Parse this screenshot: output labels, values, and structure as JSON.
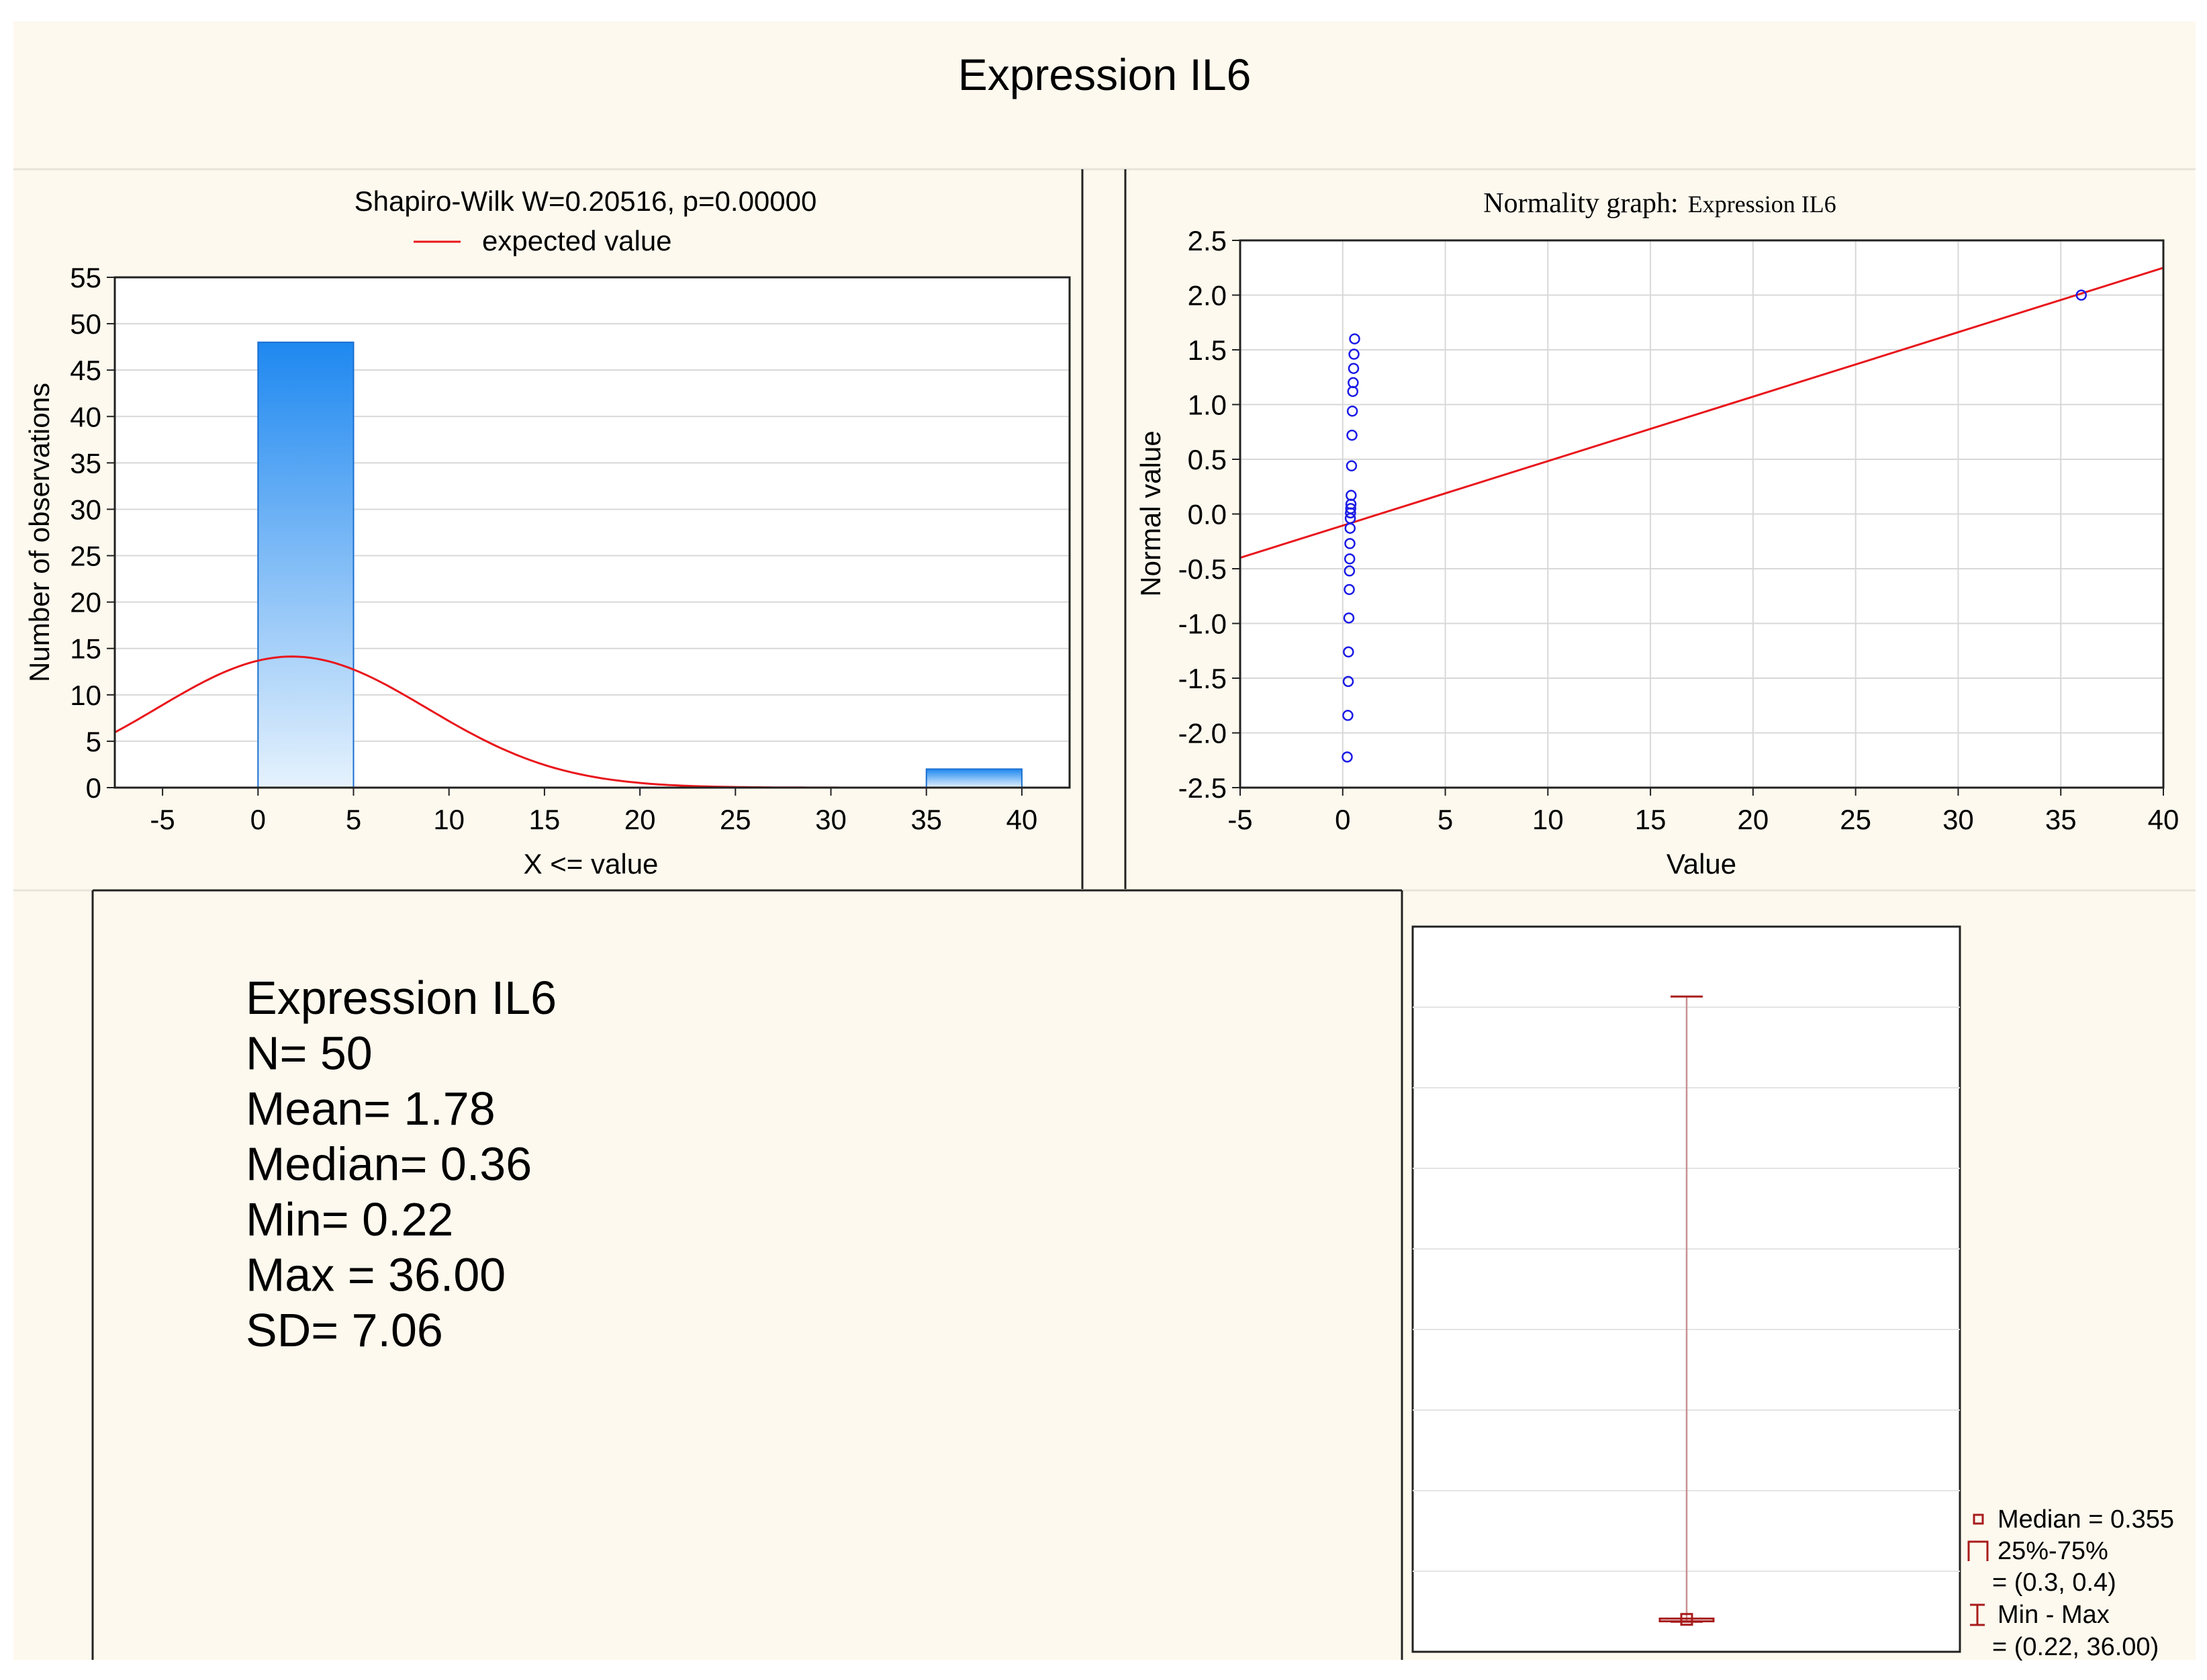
{
  "page": {
    "title": "Expression IL6",
    "background_color": "#fdf9ee"
  },
  "histogram": {
    "title": "Shapiro-Wilk W=0.20516, p=0.00000",
    "legend_label": "expected value",
    "xlabel": "X <=  value",
    "ylabel": "Number of observations",
    "x_ticks": [
      "-5",
      "0",
      "5",
      "10",
      "15",
      "20",
      "25",
      "30",
      "35",
      "40"
    ],
    "y_ticks": [
      "0",
      "5",
      "10",
      "15",
      "20",
      "25",
      "30",
      "35",
      "40",
      "45",
      "50",
      "55"
    ]
  },
  "normality": {
    "title_prefix": "Normality graph:",
    "title_var": "Expression IL6",
    "xlabel": "Value",
    "ylabel": "Normal value",
    "x_ticks": [
      "-5",
      "0",
      "5",
      "10",
      "15",
      "20",
      "25",
      "30",
      "35",
      "40"
    ],
    "y_ticks": [
      "-2.5",
      "-2.0",
      "-1.5",
      "-1.0",
      "-0.5",
      "0.0",
      "0.5",
      "1.0",
      "1.5",
      "2.0",
      "2.5"
    ]
  },
  "stats": {
    "lines": [
      "Expression IL6",
      "N= 50",
      "Mean=  1.78",
      "Median=  0.36",
      "Min=  0.22",
      "Max = 36.00",
      "SD=  7.06"
    ]
  },
  "boxplot": {
    "legend_median": "Median = 0.355",
    "legend_iqr_label": "25%-75%",
    "legend_iqr_value": "= (0.3, 0.4)",
    "legend_range_label": "Min - Max",
    "legend_range_value": "= (0.22, 36.00)"
  },
  "colors": {
    "bar_top": "#1e88f0",
    "bar_bottom": "#e6f2fd",
    "curve": "#e8161c",
    "points": "#1a1ae6",
    "grid": "#d8d8d8",
    "box": "#a81c1c"
  },
  "chart_data": [
    {
      "type": "bar",
      "title": "Shapiro-Wilk W=0.20516, p=0.00000",
      "xlabel": "X <=  value",
      "ylabel": "Number of observations",
      "bins": [
        [
          0,
          5
        ],
        [
          35,
          40
        ]
      ],
      "values": [
        48,
        2
      ],
      "xlim": [
        -7.5,
        42.5
      ],
      "ylim": [
        0,
        55
      ],
      "grid": true,
      "legend_position": "top",
      "series": [
        {
          "name": "expected value",
          "type": "line",
          "mean": 1.78,
          "sd": 7.06,
          "n": 50,
          "bin_width": 5
        }
      ]
    },
    {
      "type": "scatter",
      "title": "Normality graph: Expression IL6",
      "xlabel": "Value",
      "ylabel": "Normal value",
      "xlim": [
        -5,
        40
      ],
      "ylim": [
        -2.5,
        2.5
      ],
      "grid": true,
      "points": [
        [
          0.22,
          -2.22
        ],
        [
          0.25,
          -1.84
        ],
        [
          0.27,
          -1.53
        ],
        [
          0.28,
          -1.26
        ],
        [
          0.3,
          -0.95
        ],
        [
          0.32,
          -0.69
        ],
        [
          0.33,
          -0.52
        ],
        [
          0.34,
          -0.41
        ],
        [
          0.35,
          -0.27
        ],
        [
          0.36,
          -0.13
        ],
        [
          0.37,
          -0.04
        ],
        [
          0.38,
          0.01
        ],
        [
          0.39,
          0.05
        ],
        [
          0.4,
          0.09
        ],
        [
          0.41,
          0.17
        ],
        [
          0.43,
          0.44
        ],
        [
          0.45,
          0.72
        ],
        [
          0.47,
          0.94
        ],
        [
          0.49,
          1.12
        ],
        [
          0.51,
          1.2
        ],
        [
          0.53,
          1.33
        ],
        [
          0.55,
          1.46
        ],
        [
          0.58,
          1.6
        ],
        [
          36.0,
          2.0
        ]
      ],
      "series": [
        {
          "type": "line",
          "points": [
            [
              -5,
              -0.4
            ],
            [
              40,
              2.25
            ]
          ]
        }
      ]
    },
    {
      "type": "box",
      "median": 0.355,
      "q1": 0.3,
      "q3": 0.4,
      "min": 0.22,
      "max": 36.0,
      "ylim": [
        -1.5,
        40
      ]
    }
  ]
}
